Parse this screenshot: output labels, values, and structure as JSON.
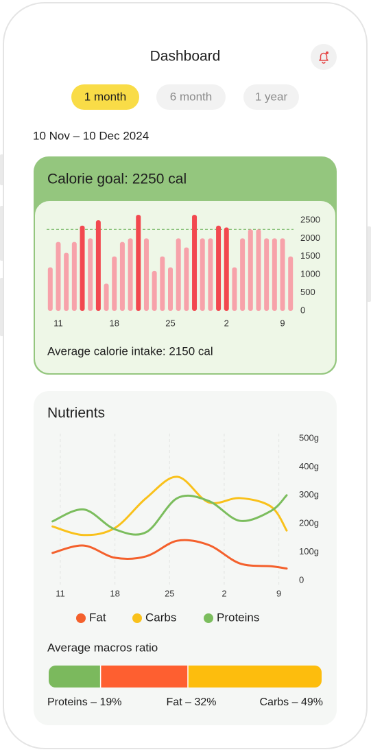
{
  "header": {
    "title": "Dashboard"
  },
  "tabs": [
    {
      "label": "1 month",
      "selected": true
    },
    {
      "label": "6 month",
      "selected": false
    },
    {
      "label": "1 year",
      "selected": false
    }
  ],
  "date_range": "10 Nov – 10 Dec 2024",
  "calorie_card": {
    "title": "Calorie goal: 2250 cal",
    "average": "Average calorie intake: 2150 cal",
    "chart": {
      "type": "bar",
      "goal_line": 2250,
      "color": "#f7a2aa",
      "highlight_color": "#f2484f",
      "categories": [
        null,
        "11",
        null,
        null,
        null,
        null,
        null,
        null,
        "18",
        null,
        null,
        null,
        null,
        null,
        null,
        "25",
        null,
        null,
        null,
        null,
        null,
        null,
        "2",
        null,
        null,
        null,
        null,
        null,
        null,
        "9",
        null
      ],
      "values": [
        1200,
        1900,
        1600,
        1900,
        2350,
        2000,
        2500,
        750,
        1500,
        1900,
        2000,
        2650,
        2000,
        1100,
        1500,
        1200,
        2000,
        1750,
        2650,
        2000,
        2000,
        2350,
        2300,
        1200,
        2000,
        2250,
        2250,
        2000,
        2000,
        2000,
        1500
      ],
      "ylim": [
        0,
        2500
      ],
      "yticks": [
        0,
        500,
        1000,
        1500,
        2000,
        2500
      ]
    }
  },
  "nutrients_card": {
    "title": "Nutrients",
    "chart": {
      "type": "line",
      "x": [
        0,
        4,
        8,
        12,
        16,
        20,
        24,
        28,
        30
      ],
      "xlim": [
        0,
        30
      ],
      "xticks": [
        {
          "value": 1,
          "label": "11"
        },
        {
          "value": 8,
          "label": "18"
        },
        {
          "value": 15,
          "label": "25"
        },
        {
          "value": 22,
          "label": "2"
        },
        {
          "value": 29,
          "label": "9"
        }
      ],
      "series": [
        {
          "name": "Fat",
          "color": "#f4602c",
          "values": [
            97,
            123,
            80,
            85,
            140,
            125,
            60,
            50,
            42
          ]
        },
        {
          "name": "Carbs",
          "color": "#f9c11b",
          "values": [
            190,
            160,
            185,
            290,
            365,
            275,
            290,
            260,
            176
          ]
        },
        {
          "name": "Proteins",
          "color": "#7bbd5d",
          "values": [
            208,
            250,
            180,
            170,
            290,
            280,
            210,
            245,
            300
          ]
        }
      ],
      "ylim": [
        0,
        500
      ],
      "yticks": [
        0,
        {
          "value": 100,
          "label": "100g"
        },
        {
          "value": 200,
          "label": "200g"
        },
        {
          "value": 300,
          "label": "300g"
        },
        {
          "value": 400,
          "label": "400g"
        },
        {
          "value": 500,
          "label": "500g"
        }
      ]
    }
  },
  "macros": {
    "title": "Average macros ratio",
    "segments": [
      {
        "name": "Proteins",
        "color": "#7bb95d",
        "value": 19,
        "label": "Proteins – 19%"
      },
      {
        "name": "Fat",
        "color": "#fe5f30",
        "value": 32,
        "label": "Fat – 32%"
      },
      {
        "name": "Carbs",
        "color": "#fdbd0d",
        "value": 49,
        "label": "Carbs – 49%"
      }
    ]
  }
}
